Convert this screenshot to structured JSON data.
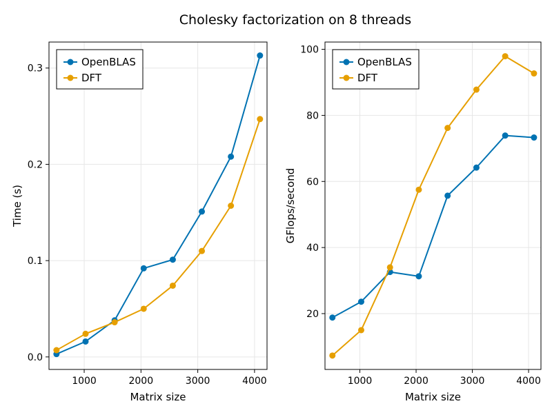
{
  "figure": {
    "title": "Cholesky factorization on 8 threads"
  },
  "colors": {
    "openblas": "#0072B2",
    "dft": "#E69F00",
    "grid": "#e6e6e6",
    "frame": "#000000"
  },
  "chart_data": [
    {
      "type": "line",
      "xlabel": "Matrix size",
      "ylabel": "Time (s)",
      "xlim": [
        380,
        4220
      ],
      "ylim": [
        -0.013,
        0.327
      ],
      "xticks": [
        1000,
        2000,
        3000,
        4000
      ],
      "xtick_labels": [
        "1000",
        "2000",
        "3000",
        "4000"
      ],
      "yticks": [
        0.0,
        0.1,
        0.2,
        0.3
      ],
      "ytick_labels": [
        "0.0",
        "0.1",
        "0.2",
        "0.3"
      ],
      "grid": true,
      "legend_position": "top-left",
      "x": [
        512,
        1024,
        1536,
        2048,
        2560,
        3072,
        3584,
        4096
      ],
      "series": [
        {
          "name": "OpenBLAS",
          "color_key": "openblas",
          "values": [
            0.003,
            0.016,
            0.038,
            0.092,
            0.101,
            0.151,
            0.208,
            0.313
          ]
        },
        {
          "name": "DFT",
          "color_key": "dft",
          "values": [
            0.007,
            0.024,
            0.036,
            0.05,
            0.074,
            0.11,
            0.157,
            0.247
          ]
        }
      ]
    },
    {
      "type": "line",
      "xlabel": "Matrix size",
      "ylabel": "GFlops/second",
      "xlim": [
        380,
        4220
      ],
      "ylim": [
        3.1,
        102.2
      ],
      "xticks": [
        1000,
        2000,
        3000,
        4000
      ],
      "xtick_labels": [
        "1000",
        "2000",
        "3000",
        "4000"
      ],
      "yticks": [
        20,
        40,
        60,
        80,
        100
      ],
      "ytick_labels": [
        "20",
        "40",
        "60",
        "80",
        "100"
      ],
      "grid": true,
      "legend_position": "top-left",
      "x": [
        512,
        1024,
        1536,
        2048,
        2560,
        3072,
        3584,
        4096
      ],
      "series": [
        {
          "name": "OpenBLAS",
          "color_key": "openblas",
          "values": [
            18.8,
            23.6,
            32.6,
            31.3,
            55.7,
            64.2,
            73.9,
            73.3
          ]
        },
        {
          "name": "DFT",
          "color_key": "dft",
          "values": [
            7.3,
            15.0,
            34.0,
            57.5,
            76.2,
            87.8,
            97.9,
            92.7
          ]
        }
      ]
    }
  ]
}
